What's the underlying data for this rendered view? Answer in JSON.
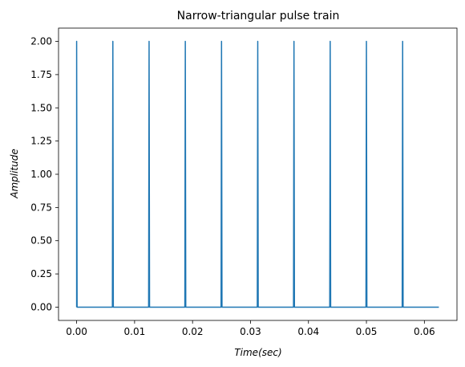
{
  "chart_data": {
    "type": "line",
    "title": "Narrow-triangular pulse train",
    "xlabel": "Time(sec)",
    "ylabel": "Amplitude",
    "xlim": [
      -0.003125,
      0.065625
    ],
    "ylim": [
      -0.1,
      2.1
    ],
    "xticks": [
      0.0,
      0.01,
      0.02,
      0.03,
      0.04,
      0.05,
      0.06
    ],
    "xtick_labels": [
      "0.00",
      "0.01",
      "0.02",
      "0.03",
      "0.04",
      "0.05",
      "0.06"
    ],
    "yticks": [
      0.0,
      0.25,
      0.5,
      0.75,
      1.0,
      1.25,
      1.5,
      1.75,
      2.0
    ],
    "ytick_labels": [
      "0.00",
      "0.25",
      "0.50",
      "0.75",
      "1.00",
      "1.25",
      "1.50",
      "1.75",
      "2.00"
    ],
    "grid": false,
    "series": [
      {
        "color": "#1f77b4",
        "baseline": 0,
        "pulse_amplitude": 2.0,
        "pulse_times": [
          0.0,
          0.00625,
          0.0125,
          0.01875,
          0.025,
          0.03125,
          0.0375,
          0.04375,
          0.05,
          0.05625
        ],
        "x_start": 0.0,
        "x_end": 0.0625
      }
    ]
  }
}
